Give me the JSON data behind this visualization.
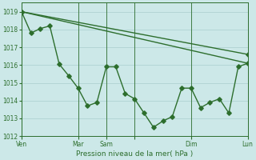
{
  "xlabel": "Pression niveau de la mer( hPa )",
  "ylim": [
    1012,
    1019.5
  ],
  "xlim": [
    0,
    96
  ],
  "yticks": [
    1012,
    1013,
    1014,
    1015,
    1016,
    1017,
    1018,
    1019
  ],
  "xtick_positions": [
    0,
    24,
    36,
    48,
    72,
    96
  ],
  "xtick_labels": [
    "Ven",
    "Mar",
    "Sam",
    "",
    "Dim",
    "Lun"
  ],
  "bg_color": "#cce8e8",
  "grid_color": "#aacece",
  "line_color": "#2d6e2d",
  "line1": [
    [
      0,
      1019.0
    ],
    [
      4,
      1017.8
    ],
    [
      8,
      1018.05
    ],
    [
      12,
      1018.2
    ],
    [
      16,
      1016.05
    ],
    [
      20,
      1015.4
    ],
    [
      24,
      1014.7
    ],
    [
      28,
      1013.7
    ],
    [
      32,
      1013.9
    ],
    [
      36,
      1015.9
    ],
    [
      40,
      1015.9
    ],
    [
      44,
      1014.4
    ],
    [
      48,
      1014.1
    ],
    [
      52,
      1013.3
    ],
    [
      56,
      1012.5
    ],
    [
      60,
      1012.85
    ],
    [
      64,
      1013.1
    ],
    [
      68,
      1014.7
    ],
    [
      72,
      1014.7
    ],
    [
      76,
      1013.6
    ],
    [
      80,
      1013.9
    ],
    [
      84,
      1014.1
    ],
    [
      88,
      1013.3
    ],
    [
      92,
      1015.9
    ],
    [
      96,
      1016.1
    ]
  ],
  "line2": [
    [
      0,
      1019.0
    ],
    [
      96,
      1016.1
    ]
  ],
  "line3": [
    [
      0,
      1019.0
    ],
    [
      96,
      1016.6
    ]
  ],
  "marker": "D",
  "markersize": 2.8,
  "linewidth": 1.0
}
